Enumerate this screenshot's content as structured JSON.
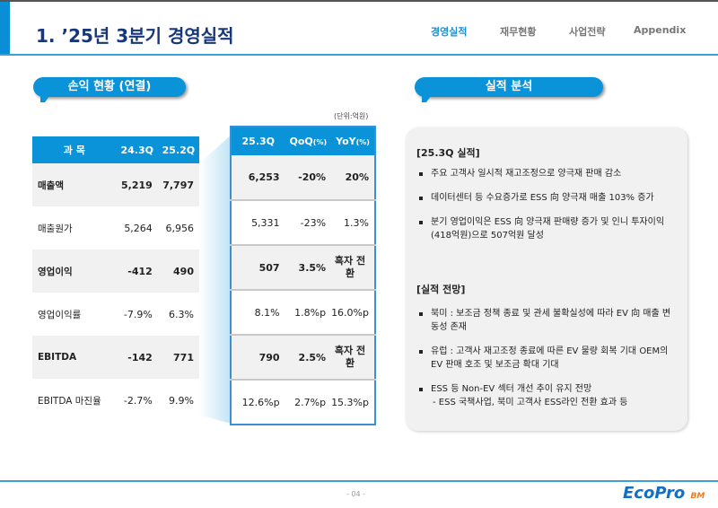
{
  "header": {
    "title": "1. ’25년 3분기 경영실적",
    "nav": [
      "경영실적",
      "재무현황",
      "사업전략",
      "Appendix"
    ],
    "active": "경영실적"
  },
  "left": {
    "pill": "손익 현황 (연결)",
    "unit": "(단위:억원)",
    "headers": [
      "과 목",
      "24.3Q",
      "25.2Q"
    ],
    "rows": [
      [
        "매출액",
        "5,219",
        "7,797"
      ],
      [
        "매출원가",
        "5,264",
        "6,956"
      ],
      [
        "영업이익",
        "-412",
        "490"
      ],
      [
        "영업이익률",
        "-7.9%",
        "6.3%"
      ],
      [
        "EBITDA",
        "-142",
        "771"
      ],
      [
        "EBITDA 마진율",
        "-2.7%",
        "9.9%"
      ]
    ],
    "right_headers": [
      "25.3Q",
      "QoQ",
      "YoY"
    ],
    "pct": "(%)",
    "right_rows": [
      [
        "6,253",
        "-20%",
        "20%"
      ],
      [
        "5,331",
        "-23%",
        "1.3%"
      ],
      [
        "507",
        "3.5%",
        "흑자 전환"
      ],
      [
        "8.1%",
        "1.8%p",
        "16.0%p"
      ],
      [
        "790",
        "2.5%",
        "흑자 전환"
      ],
      [
        "12.6%p",
        "2.7%p",
        "15.3%p"
      ]
    ]
  },
  "analysis": {
    "pill": "실적 분석",
    "sec1": "[25.3Q 실적]",
    "b1": [
      "주요 고객사 일시적 재고조정으로 양극재 판매 감소",
      "데이터센터 등 수요증가로 ESS 向 양극재 매출 103% 증가",
      "분기 영업이익은 ESS 向 양극재 판매량 증가 및 인니 투자이익(418억원)으로 507억원 달성"
    ],
    "sec2": "[실적 전망]",
    "b2": [
      "북미 : 보조금 정책 종료 및 관세 불확실성에 따라 EV 向 매출 변동성 존재",
      "유럽 : 고객사 재고조정 종료에 따른 EV 물량 회복 기대 OEM의 EV 판매 호조 및 보조금 확대 기대",
      "ESS 등 Non-EV 섹터 개선 추이 유지 전망"
    ],
    "sub": "- ESS 국책사업, 북미 고객사 ESS라인 전환 효과 등"
  },
  "footer": {
    "page": "- 04 -",
    "logo": "EcoPro",
    "logo_sub": "BM"
  },
  "colors": {
    "accent": "#0a93d8",
    "title": "#17377a"
  }
}
